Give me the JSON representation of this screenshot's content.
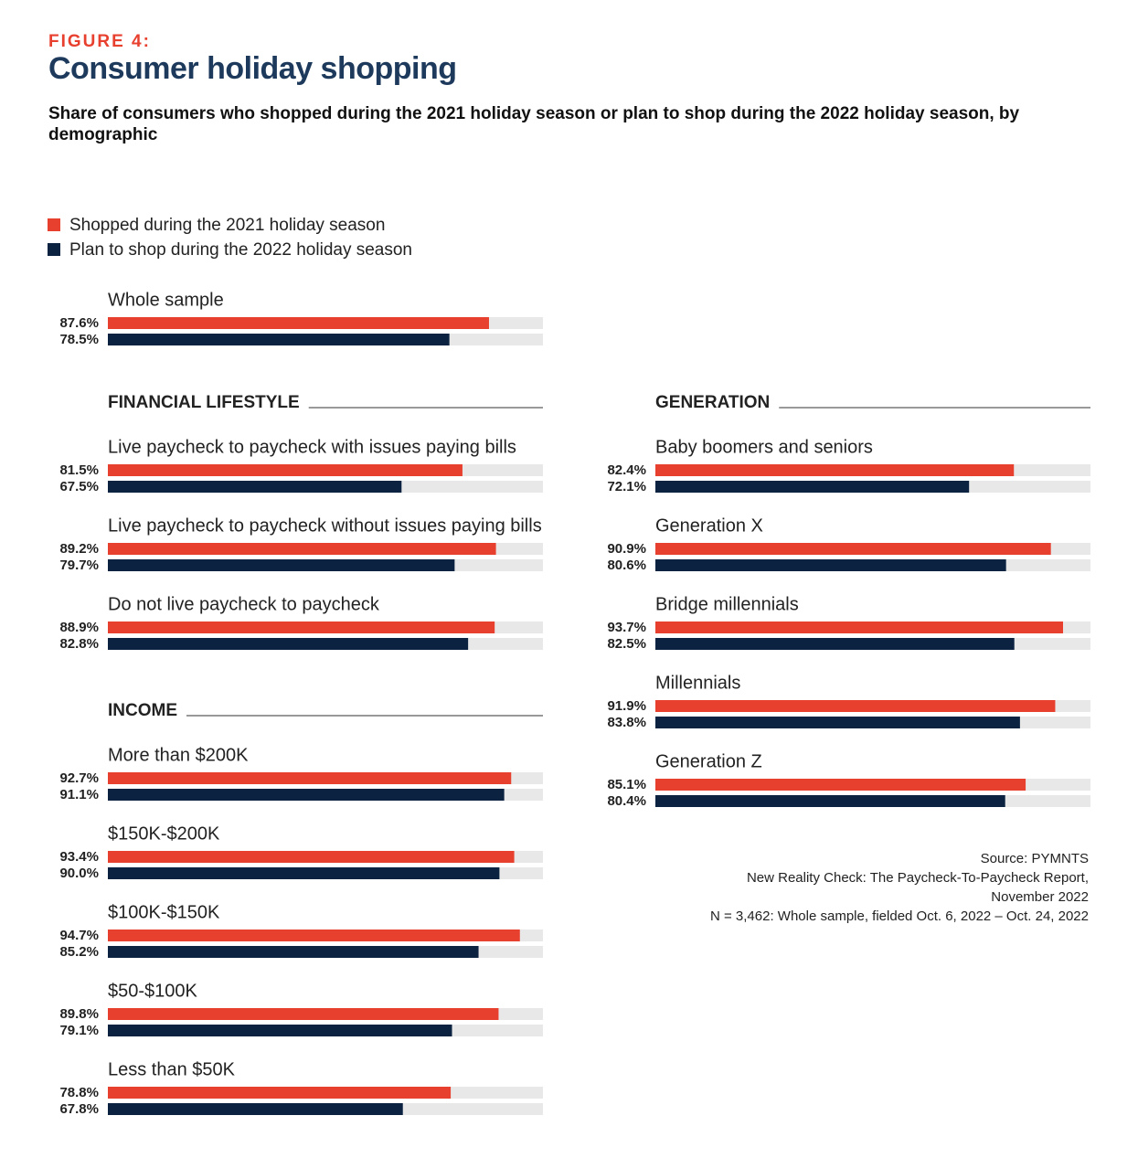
{
  "chart_data": {
    "type": "bar",
    "figure_label": "FIGURE 4:",
    "title": "Consumer holiday shopping",
    "subtitle": "Share of consumers who shopped during the 2021 holiday season or plan to shop during the 2022 holiday season, by demographic",
    "xlim": [
      0,
      100
    ],
    "series": [
      {
        "name": "Shopped during the 2021 holiday season",
        "color": "#e8402f"
      },
      {
        "name": "Plan to shop during the 2022 holiday season",
        "color": "#0b2340"
      }
    ],
    "groups": [
      {
        "categories": [
          "Whole sample"
        ],
        "series": [
          {
            "values": [
              87.6
            ],
            "value_labels": [
              "87.6%"
            ]
          },
          {
            "values": [
              78.5
            ],
            "value_labels": [
              "78.5%"
            ]
          }
        ]
      },
      {
        "heading": "FINANCIAL LIFESTYLE",
        "categories": [
          "Live paycheck to paycheck with issues paying bills",
          "Live paycheck to paycheck without issues paying bills",
          "Do not live paycheck to paycheck"
        ],
        "series": [
          {
            "values": [
              81.5,
              89.2,
              88.9
            ],
            "value_labels": [
              "81.5%",
              "89.2%",
              "88.9%"
            ]
          },
          {
            "values": [
              67.5,
              79.7,
              82.8
            ],
            "value_labels": [
              "67.5%",
              "79.7%",
              "82.8%"
            ]
          }
        ]
      },
      {
        "heading": "INCOME",
        "categories": [
          "More than $200K",
          "$150K-$200K",
          "$100K-$150K",
          "$50-$100K",
          "Less than $50K"
        ],
        "series": [
          {
            "values": [
              92.7,
              93.4,
              94.7,
              89.8,
              78.8
            ],
            "value_labels": [
              "92.7%",
              "93.4%",
              "94.7%",
              "89.8%",
              "78.8%"
            ]
          },
          {
            "values": [
              91.1,
              90.0,
              85.2,
              79.1,
              67.8
            ],
            "value_labels": [
              "91.1%",
              "90.0%",
              "85.2%",
              "79.1%",
              "67.8%"
            ]
          }
        ]
      },
      {
        "heading": "GENERATION",
        "categories": [
          "Baby boomers and seniors",
          "Generation X",
          "Bridge millennials",
          "Millennials",
          "Generation Z"
        ],
        "series": [
          {
            "values": [
              82.4,
              90.9,
              93.7,
              91.9,
              85.1
            ],
            "value_labels": [
              "82.4%",
              "90.9%",
              "93.7%",
              "91.9%",
              "85.1%"
            ]
          },
          {
            "values": [
              72.1,
              80.6,
              82.5,
              83.8,
              80.4
            ],
            "value_labels": [
              "72.1%",
              "80.6%",
              "82.5%",
              "83.8%",
              "80.4%"
            ]
          }
        ]
      }
    ],
    "source": [
      "Source: PYMNTS",
      "New Reality Check: The Paycheck-To-Paycheck Report,",
      "November 2022",
      "N = 3,462: Whole sample, fielded Oct. 6, 2022 – Oct. 24, 2022"
    ]
  }
}
